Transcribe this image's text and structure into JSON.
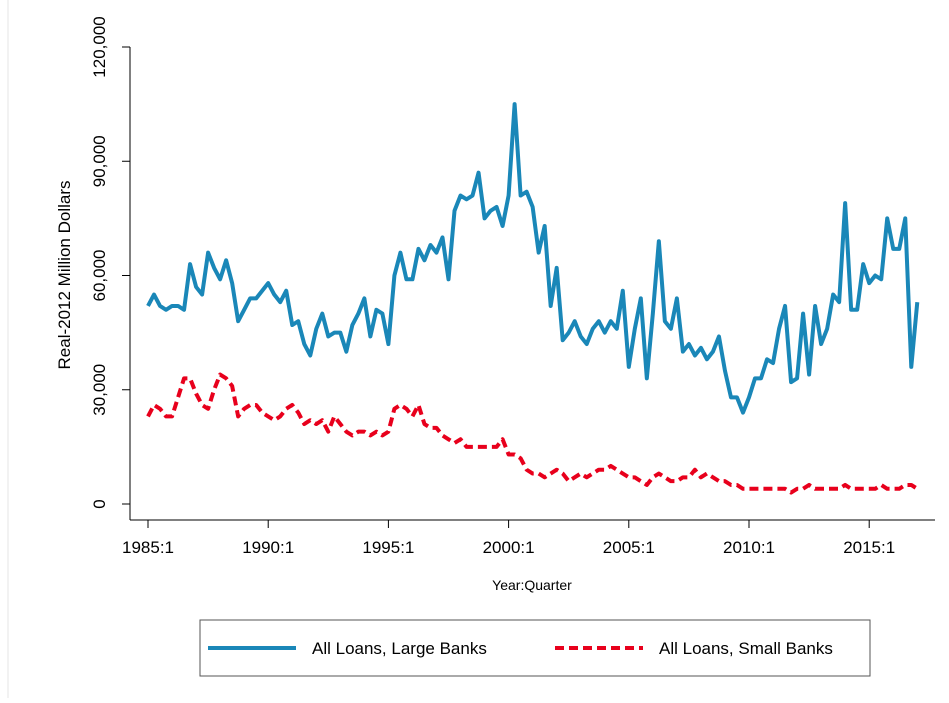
{
  "chart_data": {
    "type": "line",
    "x_label": "Year:Quarter",
    "y_label": "Real-2012 Million Dollars",
    "categories": [
      "1985:1",
      null,
      null,
      null,
      null,
      null,
      null,
      null,
      null,
      null,
      null,
      null,
      null,
      null,
      null,
      null,
      null,
      null,
      null,
      null,
      "1990:1",
      null,
      null,
      null,
      null,
      null,
      null,
      null,
      null,
      null,
      null,
      null,
      null,
      null,
      null,
      null,
      null,
      null,
      null,
      null,
      "1995:1",
      null,
      null,
      null,
      null,
      null,
      null,
      null,
      null,
      null,
      null,
      null,
      null,
      null,
      null,
      null,
      null,
      null,
      null,
      null,
      "2000:1",
      null,
      null,
      null,
      null,
      null,
      null,
      null,
      null,
      null,
      null,
      null,
      null,
      null,
      null,
      null,
      null,
      null,
      null,
      null,
      "2005:1",
      null,
      null,
      null,
      null,
      null,
      null,
      null,
      null,
      null,
      null,
      null,
      null,
      null,
      null,
      null,
      null,
      null,
      null,
      null,
      "2010:1",
      null,
      null,
      null,
      null,
      null,
      null,
      null,
      null,
      null,
      null,
      null,
      null,
      null,
      null,
      null,
      null,
      null,
      null,
      null,
      "2015:1",
      null,
      null,
      null,
      null,
      null,
      null,
      null,
      null
    ],
    "series": [
      {
        "name": "All Loans, Large Banks",
        "color": "#1a87b8",
        "dash": false,
        "values": [
          52000,
          55000,
          52000,
          51000,
          52000,
          52000,
          51000,
          63000,
          57000,
          55000,
          66000,
          62000,
          59000,
          64000,
          58000,
          48000,
          51000,
          54000,
          54000,
          56000,
          58000,
          55000,
          53000,
          56000,
          47000,
          48000,
          42000,
          39000,
          46000,
          50000,
          44000,
          45000,
          45000,
          40000,
          47000,
          50000,
          54000,
          44000,
          51000,
          50000,
          42000,
          60000,
          66000,
          59000,
          59000,
          67000,
          64000,
          68000,
          66000,
          70000,
          59000,
          77000,
          81000,
          80000,
          81000,
          87000,
          75000,
          77000,
          78000,
          73000,
          81000,
          105000,
          81000,
          82000,
          78000,
          66000,
          73000,
          52000,
          62000,
          43000,
          45000,
          48000,
          44000,
          42000,
          46000,
          48000,
          45000,
          48000,
          46000,
          56000,
          36000,
          46000,
          54000,
          33000,
          50000,
          69000,
          48000,
          46000,
          54000,
          40000,
          42000,
          39000,
          41000,
          38000,
          40000,
          44000,
          35000,
          28000,
          28000,
          24000,
          28000,
          33000,
          33000,
          38000,
          37000,
          46000,
          52000,
          32000,
          33000,
          50000,
          34000,
          52000,
          42000,
          46000,
          55000,
          53000,
          79000,
          51000,
          51000,
          63000,
          58000,
          60000,
          59000,
          75000,
          67000,
          67000,
          75000,
          36000,
          53000
        ]
      },
      {
        "name": "All Loans, Small Banks",
        "color": "#e8001c",
        "dash": true,
        "values": [
          23000,
          26000,
          25000,
          23000,
          23000,
          28000,
          33000,
          33000,
          29000,
          26000,
          25000,
          30000,
          34000,
          33000,
          31000,
          23000,
          25000,
          26000,
          26000,
          24000,
          23000,
          22000,
          23000,
          25000,
          26000,
          24000,
          21000,
          22000,
          21000,
          22000,
          19000,
          23000,
          21000,
          19000,
          18000,
          19000,
          19000,
          18000,
          19000,
          18000,
          19000,
          25000,
          26000,
          25000,
          23000,
          26000,
          21000,
          20000,
          20000,
          18000,
          17000,
          16000,
          17000,
          15000,
          15000,
          15000,
          15000,
          15000,
          15000,
          17000,
          13000,
          13000,
          12000,
          9000,
          8000,
          8000,
          7000,
          8000,
          9000,
          8000,
          6000,
          7000,
          8000,
          7000,
          8000,
          9000,
          9000,
          10000,
          9000,
          8000,
          7000,
          7000,
          6000,
          5000,
          7000,
          8000,
          7000,
          6000,
          6000,
          7000,
          7000,
          9000,
          7000,
          8000,
          7000,
          6000,
          6000,
          5000,
          5000,
          4000,
          4000,
          4000,
          4000,
          4000,
          4000,
          4000,
          4000,
          3000,
          4000,
          4000,
          5000,
          4000,
          4000,
          4000,
          4000,
          4000,
          5000,
          4000,
          4000,
          4000,
          4000,
          4000,
          5000,
          4000,
          4000,
          4000,
          5000,
          5000,
          4000
        ]
      }
    ],
    "ylim": [
      -4200,
      120000
    ],
    "yticks": [
      0,
      {
        "value": 30000,
        "label": "30,000"
      },
      {
        "value": 60000,
        "label": "60,000"
      },
      {
        "value": 90000,
        "label": "90,000"
      },
      {
        "value": 120000,
        "label": "120,000"
      }
    ],
    "grid": false,
    "legend": "bottom"
  }
}
